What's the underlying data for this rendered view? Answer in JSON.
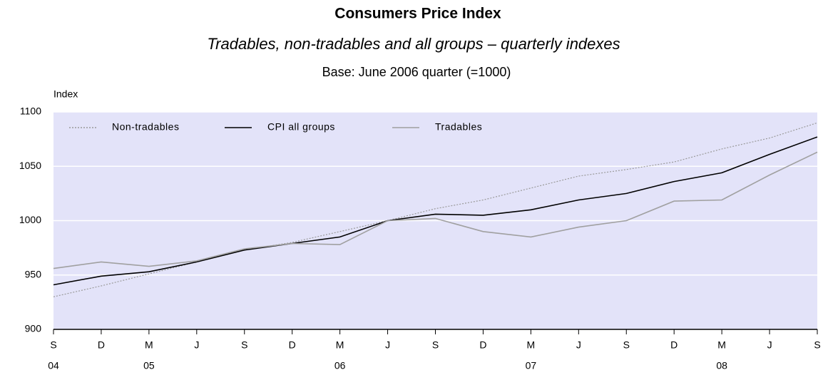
{
  "chart_data": {
    "type": "line",
    "title": "Consumers Price Index",
    "subtitle": "Tradables, non-tradables and all groups – quarterly indexes",
    "note": "Base: June 2006 quarter (=1000)",
    "y_label": "Index",
    "categories": [
      "S",
      "D",
      "M",
      "J",
      "S",
      "D",
      "M",
      "J",
      "S",
      "D",
      "M",
      "J",
      "S",
      "D",
      "M",
      "J",
      "S"
    ],
    "year_labels": [
      "04",
      null,
      "05",
      null,
      null,
      null,
      "06",
      null,
      null,
      null,
      "07",
      null,
      null,
      null,
      "08",
      null,
      null
    ],
    "series": [
      {
        "name": "Non-tradables",
        "color": "#9a9a9a",
        "dash": "dotted",
        "values": [
          930,
          940,
          951,
          962,
          973,
          980,
          990,
          1000,
          1011,
          1019,
          1030,
          1041,
          1047,
          1054,
          1066,
          1076,
          1090
        ]
      },
      {
        "name": "CPI all groups",
        "color": "#000000",
        "dash": "solid",
        "values": [
          941,
          949,
          953,
          962,
          973,
          979,
          985,
          1000,
          1006,
          1005,
          1010,
          1019,
          1025,
          1036,
          1044,
          1061,
          1077
        ]
      },
      {
        "name": "Tradables",
        "color": "#a0a0a0",
        "dash": "solid",
        "values": [
          956,
          962,
          958,
          963,
          974,
          979,
          978,
          1000,
          1002,
          990,
          985,
          994,
          1000,
          1018,
          1019,
          1042,
          1063
        ]
      }
    ],
    "ylim": [
      900,
      1100
    ],
    "yticks": [
      900,
      950,
      1000,
      1050,
      1100
    ],
    "grid": true,
    "background": "#e3e3f9",
    "legend": "top-left"
  }
}
